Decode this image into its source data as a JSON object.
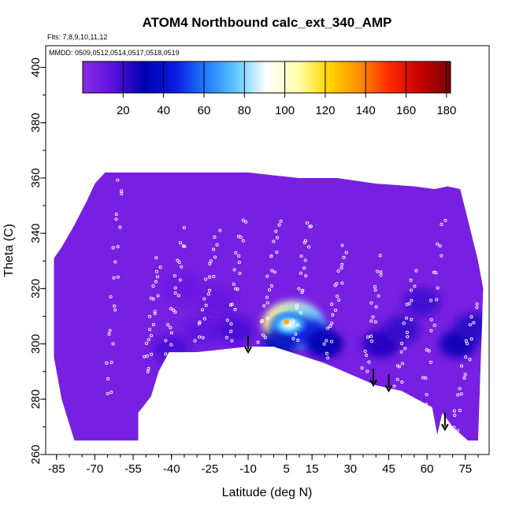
{
  "chart_data": {
    "type": "heatmap",
    "title": "ATOM4 Northbound calc_ext_340_AMP",
    "flights_text": "Flts: 7,8,9,10,11,12",
    "dates_text": "MMDD: 0509,0512,0514,0517,0518,0519",
    "xlabel": "Latitude (deg N)",
    "ylabel": "Theta (C)",
    "xlim": [
      -88,
      84
    ],
    "ylim": [
      260,
      405
    ],
    "x_ticks": [
      -85,
      -70,
      -55,
      -40,
      -25,
      -10,
      5,
      15,
      30,
      45,
      60,
      75
    ],
    "x_tick_labels": [
      "-85",
      "-70",
      "-55",
      "-40",
      "-25",
      "-10",
      "5",
      "15",
      "30",
      "45",
      "60",
      "75"
    ],
    "y_ticks": [
      260,
      280,
      300,
      320,
      340,
      360,
      380,
      400
    ],
    "y_tick_labels": [
      "260",
      "280",
      "300",
      "320",
      "340",
      "360",
      "380",
      "400"
    ],
    "colorbar": {
      "min": 0,
      "max": 182,
      "ticks": [
        20,
        40,
        60,
        80,
        100,
        120,
        140,
        160,
        180
      ],
      "tick_labels": [
        "20",
        "40",
        "60",
        "80",
        "100",
        "120",
        "140",
        "160",
        "180"
      ],
      "colors": [
        "#8a2be2",
        "#5a10e0",
        "#0000b0",
        "#0a1ae0",
        "#1e78ff",
        "#5fc8ff",
        "#ffffff",
        "#ffffb0",
        "#ffd700",
        "#ff9000",
        "#ff2a00",
        "#c80000",
        "#7a0000"
      ]
    },
    "background_value": 6,
    "data_domain": {
      "top": [
        [
          -86,
          331
        ],
        [
          -83,
          335
        ],
        [
          -78,
          343
        ],
        [
          -73,
          352
        ],
        [
          -70,
          358
        ],
        [
          -66,
          362
        ],
        [
          -55,
          362
        ],
        [
          -40,
          362
        ],
        [
          -25,
          362
        ],
        [
          -10,
          362
        ],
        [
          0,
          361
        ],
        [
          10,
          360
        ],
        [
          25,
          360
        ],
        [
          40,
          358
        ],
        [
          55,
          357
        ],
        [
          63,
          356
        ],
        [
          68,
          357
        ],
        [
          73,
          356
        ],
        [
          76,
          345
        ],
        [
          80,
          330
        ],
        [
          82,
          320
        ]
      ],
      "bottom": [
        [
          -86,
          331
        ],
        [
          -86,
          295
        ],
        [
          -83,
          280
        ],
        [
          -78,
          265
        ],
        [
          -53,
          265
        ],
        [
          -53,
          275
        ],
        [
          -48,
          281
        ],
        [
          -45,
          290
        ],
        [
          -41,
          297
        ],
        [
          -30,
          297
        ],
        [
          -20,
          298
        ],
        [
          -10,
          299
        ],
        [
          0,
          299
        ],
        [
          10,
          296
        ],
        [
          20,
          293
        ],
        [
          30,
          289
        ],
        [
          40,
          285
        ],
        [
          50,
          283
        ],
        [
          58,
          279
        ],
        [
          62,
          277
        ],
        [
          64,
          267
        ],
        [
          66,
          275
        ],
        [
          70,
          270
        ],
        [
          76,
          265
        ],
        [
          80,
          265
        ],
        [
          82,
          320
        ]
      ]
    },
    "hotspots": [
      {
        "lat": 8,
        "theta": 308,
        "value": 85
      },
      {
        "lat": 6,
        "theta": 307,
        "value": 110
      },
      {
        "lat": 10,
        "theta": 306,
        "value": 75
      },
      {
        "lat": 3,
        "theta": 301,
        "value": 35
      },
      {
        "lat": 14,
        "theta": 304,
        "value": 45
      },
      {
        "lat": 20,
        "theta": 300,
        "value": 30
      },
      {
        "lat": 42,
        "theta": 300,
        "value": 25
      },
      {
        "lat": 50,
        "theta": 305,
        "value": 22
      },
      {
        "lat": 58,
        "theta": 315,
        "value": 20
      },
      {
        "lat": 72,
        "theta": 300,
        "value": 28
      },
      {
        "lat": 78,
        "theta": 306,
        "value": 24
      },
      {
        "lat": -28,
        "theta": 305,
        "value": 14
      },
      {
        "lat": -22,
        "theta": 315,
        "value": 12
      },
      {
        "lat": -40,
        "theta": 298,
        "value": 18
      },
      {
        "lat": -35,
        "theta": 320,
        "value": 10
      },
      {
        "lat": -15,
        "theta": 305,
        "value": 18
      }
    ],
    "arrows": [
      {
        "lat": -10,
        "theta_top": 303,
        "theta_bottom": 297
      },
      {
        "lat": 39,
        "theta_top": 291,
        "theta_bottom": 285
      },
      {
        "lat": 45,
        "theta_top": 289,
        "theta_bottom": 283
      },
      {
        "lat": 67,
        "theta_top": 275,
        "theta_bottom": 269
      }
    ],
    "sample_tracks": [
      {
        "lat_start": -65,
        "lat_end": -60,
        "theta_start": 280,
        "theta_end": 360
      },
      {
        "lat_start": -50,
        "lat_end": -45,
        "theta_start": 290,
        "theta_end": 330
      },
      {
        "lat_start": -42,
        "lat_end": -35,
        "theta_start": 295,
        "theta_end": 340
      },
      {
        "lat_start": -30,
        "lat_end": -22,
        "theta_start": 298,
        "theta_end": 340
      },
      {
        "lat_start": -18,
        "lat_end": -12,
        "theta_start": 298,
        "theta_end": 345
      },
      {
        "lat_start": -5,
        "lat_end": 2,
        "theta_start": 300,
        "theta_end": 345
      },
      {
        "lat_start": 8,
        "lat_end": 14,
        "theta_start": 300,
        "theta_end": 345
      },
      {
        "lat_start": 20,
        "lat_end": 28,
        "theta_start": 295,
        "theta_end": 335
      },
      {
        "lat_start": 35,
        "lat_end": 42,
        "theta_start": 285,
        "theta_end": 330
      },
      {
        "lat_start": 48,
        "lat_end": 55,
        "theta_start": 282,
        "theta_end": 325
      },
      {
        "lat_start": 58,
        "lat_end": 66,
        "theta_start": 272,
        "theta_end": 345
      },
      {
        "lat_start": 70,
        "lat_end": 79,
        "theta_start": 266,
        "theta_end": 315
      }
    ]
  }
}
